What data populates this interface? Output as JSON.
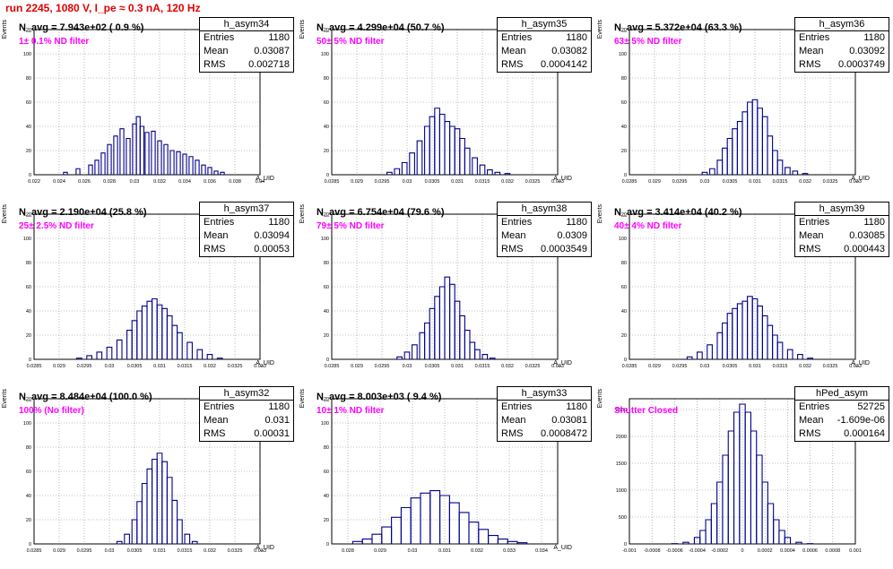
{
  "title": "run 2245,  1080 V, I_pe ≈ 0.3 nA, 120 Hz",
  "panels": [
    {
      "hname": "h_asym34",
      "navg": "N_avg = 7.943e+02 ( 0.9 %)",
      "filter": "1± 0.1% ND filter",
      "entries": "1180",
      "mean": "0.03087",
      "rms": "0.002718",
      "xlabel": "A_UID",
      "ylabel": "Events"
    },
    {
      "hname": "h_asym35",
      "navg": "N_avg = 4.299e+04 (50.7 %)",
      "filter": "50± 5% ND filter",
      "entries": "1180",
      "mean": "0.03082",
      "rms": "0.0004142",
      "xlabel": "A_UID",
      "ylabel": "Events"
    },
    {
      "hname": "h_asym36",
      "navg": "N_avg = 5.372e+04 (63.3 %)",
      "filter": "63± 5% ND filter",
      "entries": "1180",
      "mean": "0.03092",
      "rms": "0.0003749",
      "xlabel": "A_UID",
      "ylabel": "Events"
    },
    {
      "hname": "h_asym37",
      "navg": "N_avg = 2.190e+04 (25.8 %)",
      "filter": "25± 2.5% ND filter",
      "entries": "1180",
      "mean": "0.03094",
      "rms": "0.00053",
      "xlabel": "A_UID",
      "ylabel": "Events"
    },
    {
      "hname": "h_asym38",
      "navg": "N_avg = 6.754e+04 (79.6 %)",
      "filter": "79± 5% ND filter",
      "entries": "1180",
      "mean": "0.0309",
      "rms": "0.0003549",
      "xlabel": "A_UID",
      "ylabel": "Events"
    },
    {
      "hname": "h_asym39",
      "navg": "N_avg = 3.414e+04 (40.2 %)",
      "filter": "40± 4% ND filter",
      "entries": "1180",
      "mean": "0.03085",
      "rms": "0.000443",
      "xlabel": "A_UID",
      "ylabel": "Events"
    },
    {
      "hname": "h_asym32",
      "navg": "N_avg = 8.484e+04 (100.0 %)",
      "filter": "100% (No filter)",
      "entries": "1180",
      "mean": "0.031",
      "rms": "0.00031",
      "xlabel": "A_UID",
      "ylabel": "Events"
    },
    {
      "hname": "h_asym33",
      "navg": "N_avg = 8.003e+03 ( 9.4 %)",
      "filter": "10± 1% ND filter",
      "entries": "1180",
      "mean": "0.03081",
      "rms": "0.0008472",
      "xlabel": "A_UID",
      "ylabel": "Events"
    },
    {
      "hname": "hPed_asym",
      "navg": "",
      "filter": "Shutter Closed",
      "entries": "52725",
      "mean": "-1.609e-06",
      "rms": "0.000164",
      "xlabel": "",
      "ylabel": "Events"
    }
  ],
  "labels": {
    "entries": "Entries",
    "mean": "Mean",
    "rms": "RMS"
  },
  "colors": {
    "line": "#00008b",
    "grid": "#888888",
    "title": "#e00000",
    "filter": "#ff00ff"
  },
  "chart_data": [
    {
      "type": "bar",
      "name": "h_asym34",
      "xlim": [
        0.022,
        0.04
      ],
      "ylim": [
        0,
        120
      ],
      "xticks": [
        "0.022",
        "0.024",
        "0.026",
        "0.028",
        "0.03",
        "0.032",
        "0.034",
        "0.036",
        "0.038",
        "0.04"
      ],
      "yticks": [
        "0",
        "20",
        "40",
        "60",
        "80",
        "100",
        "120"
      ],
      "x": [
        0.0245,
        0.0255,
        0.0265,
        0.027,
        0.0275,
        0.028,
        0.0285,
        0.029,
        0.0295,
        0.03,
        0.0303,
        0.0306,
        0.031,
        0.0315,
        0.032,
        0.0325,
        0.033,
        0.0335,
        0.034,
        0.0345,
        0.035,
        0.0355,
        0.036,
        0.0365,
        0.037
      ],
      "y": [
        2,
        5,
        8,
        12,
        18,
        25,
        32,
        38,
        30,
        42,
        48,
        40,
        35,
        36,
        28,
        25,
        20,
        19,
        17,
        15,
        12,
        8,
        6,
        3,
        2
      ]
    },
    {
      "type": "bar",
      "name": "h_asym35",
      "xlim": [
        0.0285,
        0.033
      ],
      "ylim": [
        0,
        120
      ],
      "xticks": [
        "0.0285",
        "0.029",
        "0.0295",
        "0.03",
        "0.0305",
        "0.031",
        "0.0315",
        "0.032",
        "0.0325",
        "0.033"
      ],
      "yticks": [
        "0",
        "20",
        "40",
        "60",
        "80",
        "100",
        "120"
      ],
      "x": [
        0.02965,
        0.0298,
        0.02995,
        0.0301,
        0.03025,
        0.0304,
        0.0305,
        0.0306,
        0.0307,
        0.0308,
        0.0309,
        0.031,
        0.0311,
        0.0312,
        0.03135,
        0.0315,
        0.03165,
        0.0318,
        0.032
      ],
      "y": [
        2,
        5,
        10,
        18,
        28,
        40,
        48,
        55,
        50,
        44,
        40,
        38,
        30,
        22,
        14,
        8,
        4,
        2,
        1
      ]
    },
    {
      "type": "bar",
      "name": "h_asym36",
      "xlim": [
        0.0285,
        0.033
      ],
      "ylim": [
        0,
        120
      ],
      "xticks": [
        "0.0285",
        "0.029",
        "0.0295",
        "0.03",
        "0.0305",
        "0.031",
        "0.0315",
        "0.032",
        "0.0325",
        "0.033"
      ],
      "yticks": [
        "0",
        "20",
        "40",
        "60",
        "80",
        "100",
        "120"
      ],
      "x": [
        0.03,
        0.03015,
        0.0303,
        0.0304,
        0.0305,
        0.0306,
        0.0307,
        0.0308,
        0.0309,
        0.031,
        0.0311,
        0.0312,
        0.0313,
        0.0314,
        0.0315,
        0.03165,
        0.0318,
        0.032
      ],
      "y": [
        2,
        5,
        12,
        22,
        30,
        38,
        44,
        52,
        60,
        62,
        55,
        48,
        32,
        20,
        12,
        6,
        3,
        1
      ]
    },
    {
      "type": "bar",
      "name": "h_asym37",
      "xlim": [
        0.0285,
        0.033
      ],
      "ylim": [
        0,
        120
      ],
      "xticks": [
        "0.0285",
        "0.029",
        "0.0295",
        "0.03",
        "0.0305",
        "0.031",
        "0.0315",
        "0.032",
        "0.0325",
        "0.033"
      ],
      "yticks": [
        "0",
        "20",
        "40",
        "60",
        "80",
        "100",
        "120"
      ],
      "x": [
        0.0294,
        0.0296,
        0.0298,
        0.03,
        0.0302,
        0.0304,
        0.0305,
        0.0306,
        0.0307,
        0.0308,
        0.0309,
        0.031,
        0.0311,
        0.0312,
        0.0313,
        0.0314,
        0.0316,
        0.0318,
        0.032,
        0.0322
      ],
      "y": [
        1,
        3,
        6,
        10,
        16,
        24,
        32,
        40,
        44,
        48,
        50,
        45,
        42,
        36,
        28,
        22,
        14,
        8,
        4,
        1
      ]
    },
    {
      "type": "bar",
      "name": "h_asym38",
      "xlim": [
        0.0285,
        0.033
      ],
      "ylim": [
        0,
        120
      ],
      "xticks": [
        "0.0285",
        "0.029",
        "0.0295",
        "0.03",
        "0.0305",
        "0.031",
        "0.0315",
        "0.032",
        "0.0325",
        "0.033"
      ],
      "yticks": [
        "0",
        "20",
        "40",
        "60",
        "80",
        "100",
        "120"
      ],
      "x": [
        0.02985,
        0.03,
        0.03015,
        0.0303,
        0.0304,
        0.0305,
        0.0306,
        0.0307,
        0.0308,
        0.0309,
        0.031,
        0.0311,
        0.0312,
        0.0313,
        0.0314,
        0.03155,
        0.0317
      ],
      "y": [
        2,
        6,
        12,
        22,
        30,
        42,
        52,
        60,
        68,
        62,
        48,
        36,
        24,
        14,
        8,
        4,
        1
      ]
    },
    {
      "type": "bar",
      "name": "h_asym39",
      "xlim": [
        0.0285,
        0.033
      ],
      "ylim": [
        0,
        120
      ],
      "xticks": [
        "0.0285",
        "0.029",
        "0.0295",
        "0.03",
        "0.0305",
        "0.031",
        "0.0315",
        "0.032",
        "0.0325",
        "0.033"
      ],
      "yticks": [
        "0",
        "20",
        "40",
        "60",
        "80",
        "100",
        "120"
      ],
      "x": [
        0.0297,
        0.0299,
        0.0301,
        0.0303,
        0.0304,
        0.0305,
        0.0306,
        0.0307,
        0.0308,
        0.0309,
        0.031,
        0.0311,
        0.0312,
        0.0313,
        0.0314,
        0.0315,
        0.0317,
        0.0319,
        0.0321
      ],
      "y": [
        2,
        6,
        12,
        22,
        30,
        38,
        42,
        46,
        48,
        52,
        50,
        44,
        36,
        28,
        20,
        14,
        8,
        4,
        1
      ]
    },
    {
      "type": "bar",
      "name": "h_asym32",
      "xlim": [
        0.0285,
        0.033
      ],
      "ylim": [
        0,
        120
      ],
      "xticks": [
        "0.0285",
        "0.029",
        "0.0295",
        "0.03",
        "0.0305",
        "0.031",
        "0.0315",
        "0.032",
        "0.0325",
        "0.033"
      ],
      "yticks": [
        "0",
        "20",
        "40",
        "60",
        "80",
        "100",
        "120"
      ],
      "x": [
        0.0302,
        0.03035,
        0.0305,
        0.0306,
        0.0307,
        0.0308,
        0.0309,
        0.031,
        0.0311,
        0.0312,
        0.0313,
        0.0314,
        0.03155,
        0.0317
      ],
      "y": [
        2,
        8,
        20,
        35,
        50,
        62,
        70,
        75,
        68,
        55,
        36,
        20,
        8,
        2
      ]
    },
    {
      "type": "bar",
      "name": "h_asym33",
      "xlim": [
        0.0275,
        0.0345
      ],
      "ylim": [
        0,
        120
      ],
      "xticks": [
        "0.028",
        "0.029",
        "0.03",
        "0.031",
        "0.032",
        "0.033",
        "0.034"
      ],
      "yticks": [
        "0",
        "20",
        "40",
        "60",
        "80",
        "100",
        "120"
      ],
      "x": [
        0.0283,
        0.0286,
        0.0289,
        0.0292,
        0.0295,
        0.0298,
        0.0301,
        0.0304,
        0.0307,
        0.031,
        0.0313,
        0.0316,
        0.0319,
        0.0322,
        0.0325,
        0.0328,
        0.0331,
        0.0334
      ],
      "y": [
        2,
        4,
        8,
        14,
        22,
        30,
        38,
        42,
        44,
        40,
        34,
        26,
        18,
        12,
        7,
        4,
        2,
        1
      ]
    },
    {
      "type": "bar",
      "name": "hPed_asym",
      "xlim": [
        -0.001,
        0.001
      ],
      "ylim": [
        0,
        2700
      ],
      "xticks": [
        "-0.001",
        "-0.0008",
        "-0.0006",
        "-0.0004",
        "-0.0002",
        "0",
        "0.0002",
        "0.0004",
        "0.0006",
        "0.0008",
        "0.001"
      ],
      "yticks": [
        "0",
        "500",
        "1000",
        "1500",
        "2000",
        "2500"
      ],
      "x": [
        -0.0006,
        -0.0005,
        -0.0004,
        -0.00035,
        -0.0003,
        -0.00025,
        -0.0002,
        -0.00015,
        -0.0001,
        -5e-05,
        0,
        5e-05,
        0.0001,
        0.00015,
        0.0002,
        0.00025,
        0.0003,
        0.00035,
        0.0004,
        0.0005,
        0.0006
      ],
      "y": [
        5,
        30,
        120,
        250,
        450,
        750,
        1150,
        1650,
        2100,
        2450,
        2600,
        2450,
        2100,
        1650,
        1150,
        750,
        450,
        250,
        120,
        30,
        5
      ]
    }
  ]
}
